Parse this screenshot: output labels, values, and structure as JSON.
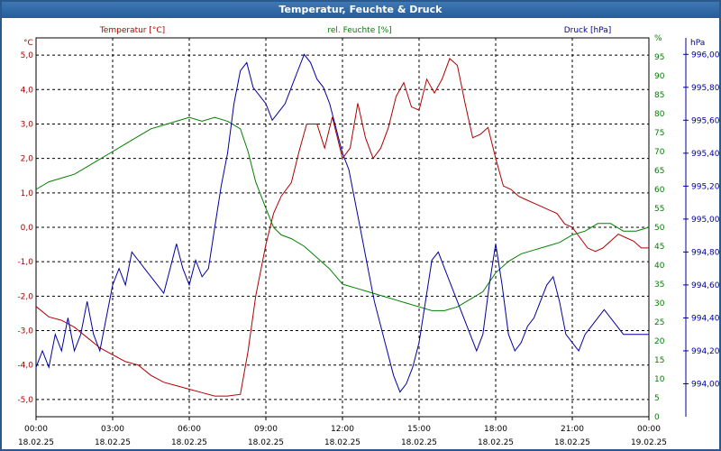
{
  "window": {
    "title": "Temperatur, Feuchte & Druck"
  },
  "chart_data": {
    "type": "line",
    "title": "Temperatur, Feuchte & Druck",
    "grid": true,
    "x_range": [
      0,
      24
    ],
    "x_ticks": [
      {
        "hour": 0,
        "time": "00:00",
        "date": "18.02.25"
      },
      {
        "hour": 3,
        "time": "03:00",
        "date": "18.02.25"
      },
      {
        "hour": 6,
        "time": "06:00",
        "date": "18.02.25"
      },
      {
        "hour": 9,
        "time": "09:00",
        "date": "18.02.25"
      },
      {
        "hour": 12,
        "time": "12:00",
        "date": "18.02.25"
      },
      {
        "hour": 15,
        "time": "15:00",
        "date": "18.02.25"
      },
      {
        "hour": 18,
        "time": "18:00",
        "date": "18.02.25"
      },
      {
        "hour": 21,
        "time": "21:00",
        "date": "18.02.25"
      },
      {
        "hour": 24,
        "time": "00:00",
        "date": "19.02.25"
      }
    ],
    "axes": {
      "left": {
        "unit": "°C",
        "range": [
          -5.5,
          5.5
        ],
        "ticks": [
          5,
          4,
          3,
          2,
          1,
          0,
          -1,
          -2,
          -3,
          -4,
          -5
        ],
        "tick_labels": [
          "5,0",
          "4,0",
          "3,0",
          "2,0",
          "1,0",
          "0,0",
          "-1,0",
          "-2,0",
          "-3,0",
          "-4,0",
          "-5,0"
        ],
        "color": "#b00000"
      },
      "middle": {
        "unit": "%",
        "range": [
          0,
          100
        ],
        "ticks": [
          100,
          95,
          90,
          85,
          80,
          75,
          70,
          65,
          60,
          55,
          50,
          45,
          40,
          35,
          30,
          25,
          20,
          15,
          10,
          5,
          0
        ],
        "tick_labels": [
          "%",
          "95",
          "90",
          "85",
          "80",
          "75",
          "70",
          "65",
          "60",
          "55",
          "50",
          "45",
          "40",
          "35",
          "30",
          "25",
          "20",
          "15",
          "10",
          "5",
          "0"
        ],
        "color": "#008000"
      },
      "right": {
        "unit": "hPa",
        "range": [
          993.8,
          996.1
        ],
        "ticks": [
          996.0,
          995.8,
          995.6,
          995.4,
          995.2,
          995.0,
          994.8,
          994.6,
          994.4,
          994.2,
          994.0
        ],
        "tick_labels": [
          "996,00",
          "995,80",
          "995,60",
          "995,40",
          "995,20",
          "995,00",
          "994,80",
          "994,60",
          "994,40",
          "994,20",
          "994,00"
        ],
        "color": "#0000a0"
      }
    },
    "series": [
      {
        "name": "Temperatur [°C]",
        "axis": "left",
        "color": "#b00000",
        "x": [
          0,
          0.5,
          1,
          1.5,
          2,
          2.5,
          3,
          3.5,
          4,
          4.5,
          5,
          5.5,
          6,
          6.5,
          7,
          7.5,
          8,
          8.3,
          8.6,
          9,
          9.3,
          9.6,
          10,
          10.3,
          10.6,
          11,
          11.3,
          11.6,
          12,
          12.3,
          12.6,
          12.9,
          13.2,
          13.5,
          13.8,
          14.1,
          14.4,
          14.7,
          15,
          15.3,
          15.6,
          15.9,
          16.2,
          16.5,
          16.8,
          17.1,
          17.4,
          17.7,
          18,
          18.3,
          18.6,
          18.9,
          19.2,
          19.5,
          19.8,
          20.1,
          20.4,
          20.7,
          21,
          21.3,
          21.6,
          21.9,
          22.2,
          22.5,
          22.8,
          23.1,
          23.4,
          23.7,
          24
        ],
        "y": [
          -2.3,
          -2.6,
          -2.7,
          -2.9,
          -3.2,
          -3.5,
          -3.7,
          -3.9,
          -4.0,
          -4.3,
          -4.5,
          -4.6,
          -4.7,
          -4.8,
          -4.9,
          -4.9,
          -4.85,
          -3.6,
          -2.0,
          -0.5,
          0.4,
          0.9,
          1.3,
          2.2,
          3.0,
          3.0,
          2.3,
          3.2,
          2.0,
          2.3,
          3.6,
          2.6,
          2.0,
          2.3,
          2.9,
          3.8,
          4.2,
          3.5,
          3.4,
          4.3,
          3.9,
          4.3,
          4.9,
          4.7,
          3.6,
          2.6,
          2.7,
          2.9,
          2.0,
          1.2,
          1.1,
          0.9,
          0.8,
          0.7,
          0.6,
          0.5,
          0.4,
          0.1,
          0.0,
          -0.3,
          -0.6,
          -0.7,
          -0.6,
          -0.4,
          -0.2,
          -0.3,
          -0.4,
          -0.6,
          -0.6
        ]
      },
      {
        "name": "rel. Feuchte [%]",
        "axis": "middle",
        "color": "#008000",
        "x": [
          0,
          0.5,
          1,
          1.5,
          2,
          2.5,
          3,
          3.5,
          4,
          4.5,
          5,
          5.5,
          6,
          6.5,
          7,
          7.5,
          8,
          8.3,
          8.6,
          9,
          9.3,
          9.6,
          10,
          10.5,
          11,
          11.5,
          12,
          12.5,
          13,
          13.5,
          14,
          14.5,
          15,
          15.5,
          16,
          16.5,
          17,
          17.5,
          18,
          18.5,
          19,
          19.5,
          20,
          20.5,
          21,
          21.5,
          22,
          22.5,
          23,
          23.5,
          24
        ],
        "y": [
          60,
          62,
          63,
          64,
          66,
          68,
          70,
          72,
          74,
          76,
          77,
          78,
          79,
          78,
          79,
          78,
          76,
          70,
          62,
          55,
          50,
          48,
          47,
          45,
          42,
          39,
          35,
          34,
          33,
          32,
          31,
          30,
          29,
          28,
          28,
          29,
          31,
          33,
          38,
          41,
          43,
          44,
          45,
          46,
          48,
          49,
          51,
          51,
          49,
          49,
          50
        ]
      },
      {
        "name": "Druck [hPa]",
        "axis": "right",
        "color": "#0000a0",
        "x": [
          0,
          0.25,
          0.5,
          0.75,
          1,
          1.25,
          1.5,
          1.75,
          2,
          2.25,
          2.5,
          2.75,
          3,
          3.25,
          3.5,
          3.75,
          4,
          4.25,
          4.5,
          4.75,
          5,
          5.25,
          5.5,
          5.75,
          6,
          6.25,
          6.5,
          6.75,
          7,
          7.25,
          7.5,
          7.75,
          8,
          8.25,
          8.5,
          8.75,
          9,
          9.25,
          9.5,
          9.75,
          10,
          10.25,
          10.5,
          10.75,
          11,
          11.25,
          11.5,
          11.75,
          12,
          12.25,
          12.5,
          12.75,
          13,
          13.25,
          13.5,
          13.75,
          14,
          14.25,
          14.5,
          14.75,
          15,
          15.25,
          15.5,
          15.75,
          16,
          16.25,
          16.5,
          16.75,
          17,
          17.25,
          17.5,
          17.75,
          18,
          18.25,
          18.5,
          18.75,
          19,
          19.25,
          19.5,
          19.75,
          20,
          20.25,
          20.5,
          20.75,
          21,
          21.25,
          21.5,
          21.75,
          22,
          22.25,
          22.5,
          22.75,
          23,
          23.25,
          23.5,
          23.75,
          24
        ],
        "y": [
          994.1,
          994.2,
          994.1,
          994.3,
          994.2,
          994.4,
          994.2,
          994.3,
          994.5,
          994.3,
          994.2,
          994.4,
          994.6,
          994.7,
          994.6,
          994.8,
          994.75,
          994.7,
          994.65,
          994.6,
          994.55,
          994.7,
          994.85,
          994.7,
          994.6,
          994.75,
          994.65,
          994.7,
          994.95,
          995.2,
          995.4,
          995.7,
          995.9,
          995.95,
          995.8,
          995.75,
          995.7,
          995.6,
          995.65,
          995.7,
          995.8,
          995.9,
          996.0,
          995.95,
          995.85,
          995.8,
          995.7,
          995.55,
          995.4,
          995.3,
          995.1,
          994.9,
          994.7,
          994.5,
          994.35,
          994.2,
          994.05,
          993.95,
          994.0,
          994.1,
          994.25,
          994.5,
          994.75,
          994.8,
          994.7,
          994.6,
          994.5,
          994.4,
          994.3,
          994.2,
          994.3,
          994.6,
          994.85,
          994.6,
          994.3,
          994.2,
          994.25,
          994.35,
          994.4,
          994.5,
          994.6,
          994.65,
          994.5,
          994.3,
          994.25,
          994.2,
          994.3,
          994.35,
          994.4,
          994.45,
          994.4,
          994.35,
          994.3,
          994.3,
          994.3,
          994.3,
          994.3
        ]
      }
    ]
  }
}
